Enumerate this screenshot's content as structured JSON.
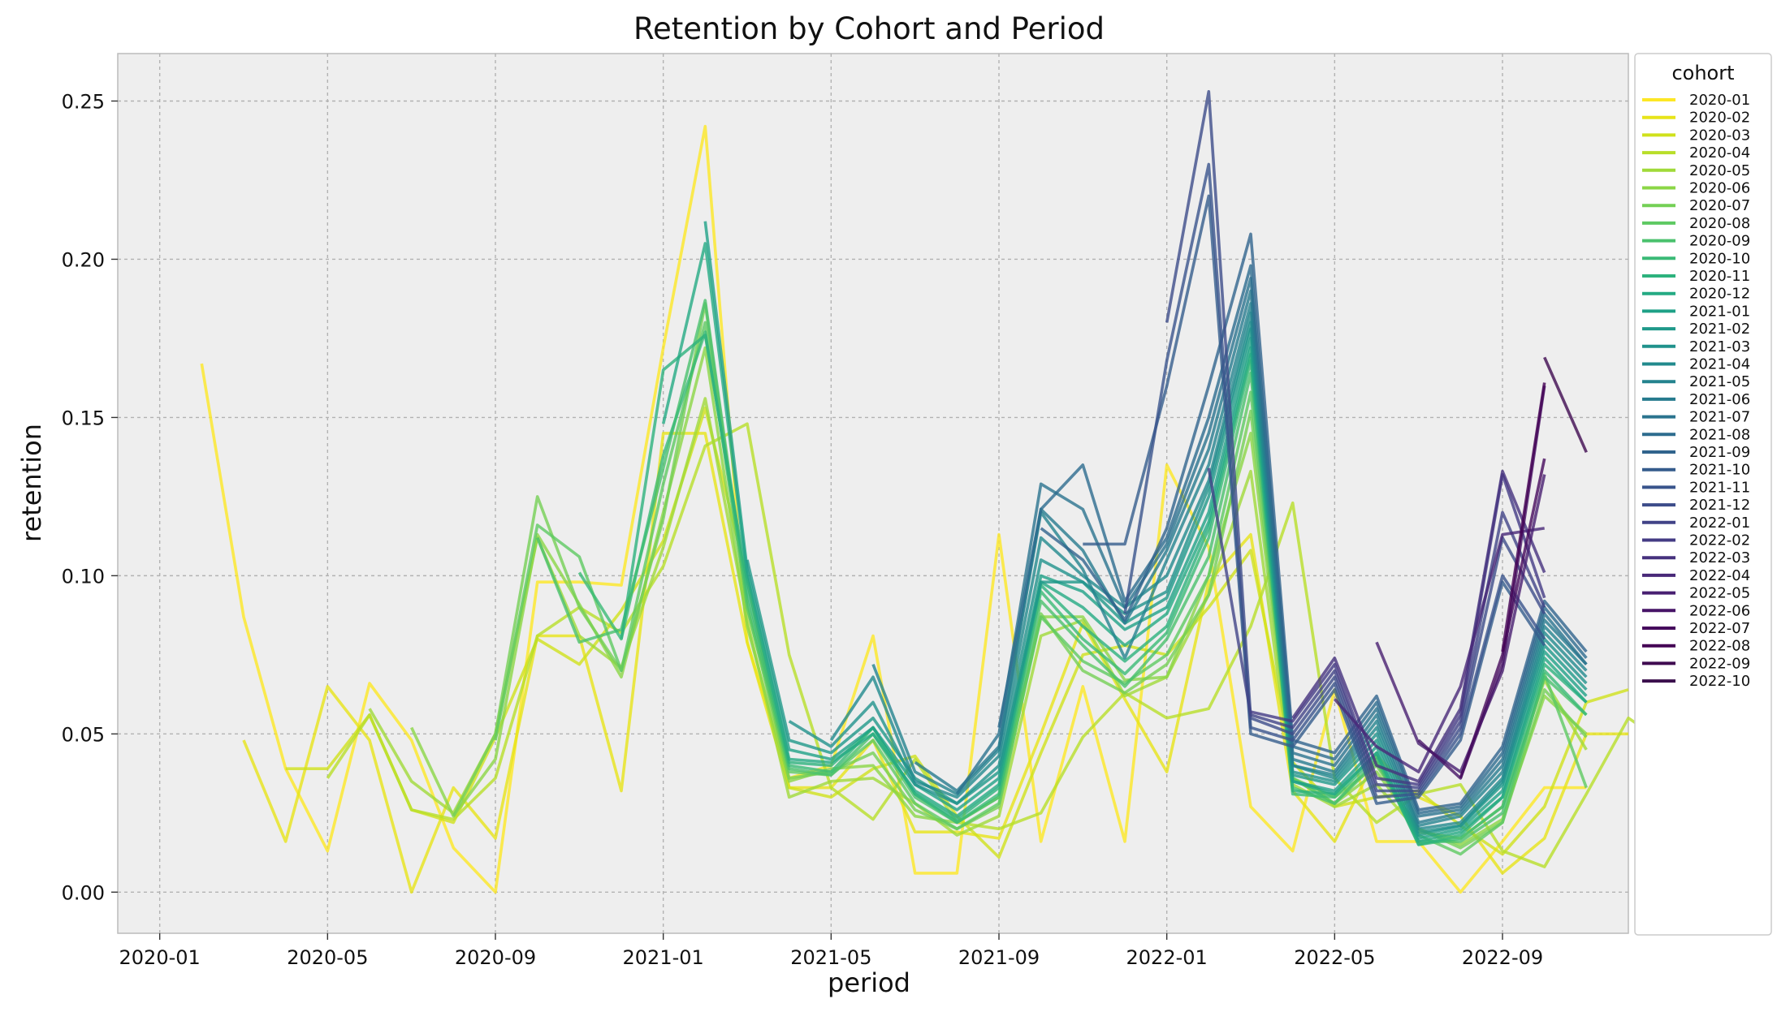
{
  "chart_data": {
    "type": "line",
    "title": "Retention by Cohort and Period",
    "xlabel": "period",
    "ylabel": "retention",
    "x_ticks": [
      "2020-01",
      "2020-05",
      "2020-09",
      "2021-01",
      "2021-05",
      "2021-09",
      "2022-01",
      "2022-05",
      "2022-09"
    ],
    "y_ticks": [
      "0.00",
      "0.05",
      "0.10",
      "0.15",
      "0.20",
      "0.25"
    ],
    "xlim": [
      "2019-12",
      "2022-12"
    ],
    "ylim": [
      -0.013,
      0.265
    ],
    "grid": true,
    "legend_title": "cohort",
    "legend_position": "right-outside",
    "colormap": "viridis (reversed: oldest cohort yellow, newest dark purple)",
    "periods": [
      "2020-02",
      "2020-03",
      "2020-04",
      "2020-05",
      "2020-06",
      "2020-07",
      "2020-08",
      "2020-09",
      "2020-10",
      "2020-11",
      "2020-12",
      "2021-01",
      "2021-02",
      "2021-03",
      "2021-04",
      "2021-05",
      "2021-06",
      "2021-07",
      "2021-08",
      "2021-09",
      "2021-10",
      "2021-11",
      "2021-12",
      "2022-01",
      "2022-02",
      "2022-03",
      "2022-04",
      "2022-05",
      "2022-06",
      "2022-07",
      "2022-08",
      "2022-09",
      "2022-10",
      "2022-11"
    ],
    "series": [
      {
        "name": "2020-01",
        "color": "#fde725",
        "start": "2020-02",
        "values": [
          0.167,
          0.087,
          0.039,
          0.013,
          0.066,
          0.048,
          0.014,
          0.0,
          0.098,
          0.098,
          0.097,
          0.172,
          0.242,
          0.079,
          0.036,
          0.04,
          0.081,
          0.006,
          0.006,
          0.113,
          0.016,
          0.065,
          0.016,
          0.135,
          0.109,
          0.027,
          0.013,
          0.064,
          0.016,
          0.016,
          0.0,
          0.016,
          0.033,
          0.033
        ]
      },
      {
        "name": "2020-02",
        "color": "#e7e419",
        "start": "2020-03",
        "values": [
          0.048,
          0.016,
          0.065,
          0.048,
          0.0,
          0.033,
          0.017,
          0.081,
          0.081,
          0.032,
          0.145,
          0.145,
          0.079,
          0.033,
          0.033,
          0.048,
          0.019,
          0.019,
          0.017,
          0.05,
          0.085,
          0.061,
          0.038,
          0.098,
          0.113,
          0.032,
          0.016,
          0.043,
          0.03,
          0.024,
          0.006,
          0.017,
          0.05,
          0.05
        ]
      },
      {
        "name": "2020-03",
        "color": "#d0e11c",
        "start": "2020-04",
        "values": [
          0.039,
          0.039,
          0.056,
          0.026,
          0.022,
          0.049,
          0.08,
          0.072,
          0.089,
          0.111,
          0.153,
          0.099,
          0.033,
          0.03,
          0.039,
          0.043,
          0.024,
          0.011,
          0.044,
          0.075,
          0.078,
          0.075,
          0.09,
          0.108,
          0.041,
          0.027,
          0.03,
          0.032,
          0.021,
          0.012,
          0.027,
          0.06,
          0.064
        ]
      },
      {
        "name": "2020-04",
        "color": "#b8de29",
        "start": "2020-05",
        "values": [
          0.036,
          0.056,
          0.026,
          0.023,
          0.036,
          0.081,
          0.09,
          0.082,
          0.103,
          0.141,
          0.148,
          0.075,
          0.033,
          0.023,
          0.042,
          0.022,
          0.02,
          0.025,
          0.049,
          0.063,
          0.055,
          0.058,
          0.084,
          0.123,
          0.036,
          0.022,
          0.031,
          0.034,
          0.013,
          0.008,
          0.031,
          0.055,
          0.046
        ]
      },
      {
        "name": "2020-05",
        "color": "#a0da39",
        "start": "2020-06",
        "values": [
          0.058,
          0.035,
          0.025,
          0.05,
          0.112,
          0.081,
          0.071,
          0.109,
          0.156,
          0.086,
          0.03,
          0.035,
          0.036,
          0.028,
          0.018,
          0.024,
          0.081,
          0.086,
          0.062,
          0.068,
          0.094,
          0.133,
          0.034,
          0.027,
          0.034,
          0.019,
          0.017,
          0.027,
          0.067,
          0.045
        ]
      },
      {
        "name": "2020-06",
        "color": "#8bd646",
        "start": "2020-07",
        "values": [
          0.052,
          0.024,
          0.042,
          0.113,
          0.091,
          0.068,
          0.12,
          0.172,
          0.084,
          0.035,
          0.039,
          0.04,
          0.024,
          0.022,
          0.03,
          0.087,
          0.087,
          0.067,
          0.068,
          0.1,
          0.145,
          0.036,
          0.028,
          0.038,
          0.02,
          0.015,
          0.023,
          0.062,
          0.05
        ]
      },
      {
        "name": "2020-07",
        "color": "#74d055",
        "start": "2020-08",
        "values": [
          0.024,
          0.05,
          0.125,
          0.09,
          0.07,
          0.118,
          0.186,
          0.09,
          0.036,
          0.038,
          0.044,
          0.026,
          0.02,
          0.027,
          0.088,
          0.07,
          0.063,
          0.072,
          0.094,
          0.152,
          0.036,
          0.03,
          0.04,
          0.02,
          0.014,
          0.022,
          0.064,
          0.049
        ]
      },
      {
        "name": "2020-08",
        "color": "#5ec962",
        "start": "2020-09",
        "values": [
          0.048,
          0.116,
          0.106,
          0.07,
          0.129,
          0.18,
          0.09,
          0.038,
          0.037,
          0.048,
          0.028,
          0.02,
          0.028,
          0.087,
          0.073,
          0.066,
          0.075,
          0.1,
          0.158,
          0.036,
          0.028,
          0.041,
          0.018,
          0.012,
          0.022,
          0.069,
          0.033
        ]
      },
      {
        "name": "2020-09",
        "color": "#4ac16d",
        "start": "2020-10",
        "values": [
          0.112,
          0.079,
          0.083,
          0.134,
          0.187,
          0.092,
          0.039,
          0.037,
          0.05,
          0.03,
          0.022,
          0.03,
          0.092,
          0.078,
          0.065,
          0.08,
          0.106,
          0.164,
          0.033,
          0.028,
          0.042,
          0.016,
          0.016,
          0.025,
          0.068,
          0.056
        ]
      },
      {
        "name": "2020-10",
        "color": "#3aba76",
        "start": "2020-11",
        "values": [
          0.101,
          0.08,
          0.138,
          0.177,
          0.095,
          0.04,
          0.038,
          0.052,
          0.031,
          0.022,
          0.031,
          0.095,
          0.08,
          0.069,
          0.082,
          0.112,
          0.168,
          0.031,
          0.03,
          0.043,
          0.015,
          0.017,
          0.027,
          0.07,
          0.056
        ]
      },
      {
        "name": "2020-11",
        "color": "#2db27d",
        "start": "2020-12",
        "values": [
          0.08,
          0.165,
          0.176,
          0.098,
          0.041,
          0.04,
          0.052,
          0.031,
          0.023,
          0.033,
          0.097,
          0.084,
          0.073,
          0.084,
          0.115,
          0.17,
          0.032,
          0.031,
          0.044,
          0.015,
          0.018,
          0.03,
          0.072,
          0.06
        ]
      },
      {
        "name": "2020-12",
        "color": "#24aa83",
        "start": "2021-01",
        "values": [
          0.148,
          0.205,
          0.1,
          0.042,
          0.041,
          0.05,
          0.032,
          0.024,
          0.034,
          0.098,
          0.09,
          0.078,
          0.088,
          0.117,
          0.172,
          0.035,
          0.031,
          0.044,
          0.016,
          0.019,
          0.03,
          0.074,
          0.06
        ]
      },
      {
        "name": "2021-01",
        "color": "#1fa187",
        "start": "2021-02",
        "values": [
          0.212,
          0.102,
          0.045,
          0.042,
          0.052,
          0.034,
          0.026,
          0.036,
          0.1,
          0.095,
          0.083,
          0.09,
          0.12,
          0.175,
          0.035,
          0.032,
          0.046,
          0.017,
          0.02,
          0.032,
          0.076,
          0.062
        ]
      },
      {
        "name": "2021-02",
        "color": "#1f998a",
        "start": "2021-03",
        "values": [
          0.105,
          0.048,
          0.044,
          0.055,
          0.036,
          0.028,
          0.038,
          0.098,
          0.098,
          0.085,
          0.093,
          0.125,
          0.178,
          0.037,
          0.034,
          0.048,
          0.018,
          0.021,
          0.034,
          0.078,
          0.064
        ]
      },
      {
        "name": "2021-03",
        "color": "#20928c",
        "start": "2021-04",
        "values": [
          0.054,
          0.046,
          0.06,
          0.034,
          0.028,
          0.04,
          0.105,
          0.098,
          0.088,
          0.095,
          0.128,
          0.18,
          0.038,
          0.035,
          0.05,
          0.019,
          0.021,
          0.035,
          0.08,
          0.066
        ]
      },
      {
        "name": "2021-04",
        "color": "#228a8d",
        "start": "2021-05",
        "values": [
          0.048,
          0.068,
          0.035,
          0.03,
          0.043,
          0.112,
          0.1,
          0.09,
          0.1,
          0.13,
          0.183,
          0.04,
          0.036,
          0.052,
          0.02,
          0.022,
          0.036,
          0.082,
          0.068
        ]
      },
      {
        "name": "2021-05",
        "color": "#24838e",
        "start": "2021-06",
        "values": [
          0.072,
          0.038,
          0.031,
          0.045,
          0.12,
          0.102,
          0.074,
          0.105,
          0.135,
          0.186,
          0.04,
          0.037,
          0.054,
          0.021,
          0.024,
          0.038,
          0.084,
          0.07
        ]
      },
      {
        "name": "2021-06",
        "color": "#277b8e",
        "start": "2021-07",
        "values": [
          0.041,
          0.032,
          0.046,
          0.121,
          0.108,
          0.085,
          0.108,
          0.14,
          0.19,
          0.042,
          0.038,
          0.056,
          0.022,
          0.025,
          0.04,
          0.086,
          0.072
        ]
      },
      {
        "name": "2021-07",
        "color": "#2a738e",
        "start": "2021-08",
        "values": [
          0.031,
          0.05,
          0.129,
          0.121,
          0.09,
          0.11,
          0.145,
          0.194,
          0.044,
          0.04,
          0.058,
          0.024,
          0.026,
          0.042,
          0.088,
          0.072
        ]
      },
      {
        "name": "2021-08",
        "color": "#2d6c8e",
        "start": "2021-09",
        "values": [
          0.052,
          0.121,
          0.135,
          0.092,
          0.112,
          0.15,
          0.198,
          0.046,
          0.042,
          0.06,
          0.025,
          0.027,
          0.044,
          0.09,
          0.074
        ]
      },
      {
        "name": "2021-09",
        "color": "#31648d",
        "start": "2021-10",
        "values": [
          0.115,
          0.105,
          0.086,
          0.115,
          0.16,
          0.208,
          0.048,
          0.044,
          0.062,
          0.026,
          0.028,
          0.046,
          0.092,
          0.076
        ]
      },
      {
        "name": "2021-10",
        "color": "#355c8c",
        "start": "2021-11",
        "values": [
          0.11,
          0.11,
          0.16,
          0.22,
          0.05,
          0.046,
          0.064,
          0.028,
          0.03,
          0.048,
          0.098,
          0.078
        ]
      },
      {
        "name": "2021-11",
        "color": "#39548c",
        "start": "2021-12",
        "values": [
          0.088,
          0.168,
          0.23,
          0.052,
          0.048,
          0.066,
          0.03,
          0.031,
          0.05,
          0.1,
          0.08
        ]
      },
      {
        "name": "2021-12",
        "color": "#3d4c8a",
        "start": "2022-01",
        "values": [
          0.18,
          0.253,
          0.055,
          0.05,
          0.068,
          0.032,
          0.032,
          0.052,
          0.112,
          0.088
        ]
      },
      {
        "name": "2022-01",
        "color": "#414387",
        "start": "2022-02",
        "values": [
          0.134,
          0.056,
          0.052,
          0.07,
          0.034,
          0.033,
          0.054,
          0.12,
          0.09
        ]
      },
      {
        "name": "2022-02",
        "color": "#443b84",
        "start": "2022-03",
        "values": [
          0.057,
          0.054,
          0.072,
          0.036,
          0.034,
          0.056,
          0.132,
          0.093
        ]
      },
      {
        "name": "2022-03",
        "color": "#46327e",
        "start": "2022-04",
        "values": [
          0.055,
          0.074,
          0.04,
          0.035,
          0.058,
          0.133,
          0.101
        ]
      },
      {
        "name": "2022-04",
        "color": "#482878",
        "start": "2022-05",
        "values": [
          0.061,
          0.046,
          0.038,
          0.065,
          0.113,
          0.115
        ]
      },
      {
        "name": "2022-05",
        "color": "#481f71",
        "start": "2022-06",
        "values": [
          0.079,
          0.047,
          0.038,
          0.07,
          0.132
        ]
      },
      {
        "name": "2022-06",
        "color": "#471467",
        "start": "2022-07",
        "values": [
          0.048,
          0.036,
          0.072,
          0.16
        ]
      },
      {
        "name": "2022-07",
        "color": "#460a5d",
        "start": "2022-08",
        "values": [
          0.036,
          0.075,
          0.137
        ]
      },
      {
        "name": "2022-08",
        "color": "#440154",
        "start": "2022-09",
        "values": [
          0.076,
          0.161
        ]
      },
      {
        "name": "2022-09",
        "color": "#3f0a50",
        "start": "2022-10",
        "values": [
          0.169,
          0.139
        ]
      },
      {
        "name": "2022-10",
        "color": "#3b0f4d",
        "start": "2022-11",
        "values": []
      }
    ]
  }
}
